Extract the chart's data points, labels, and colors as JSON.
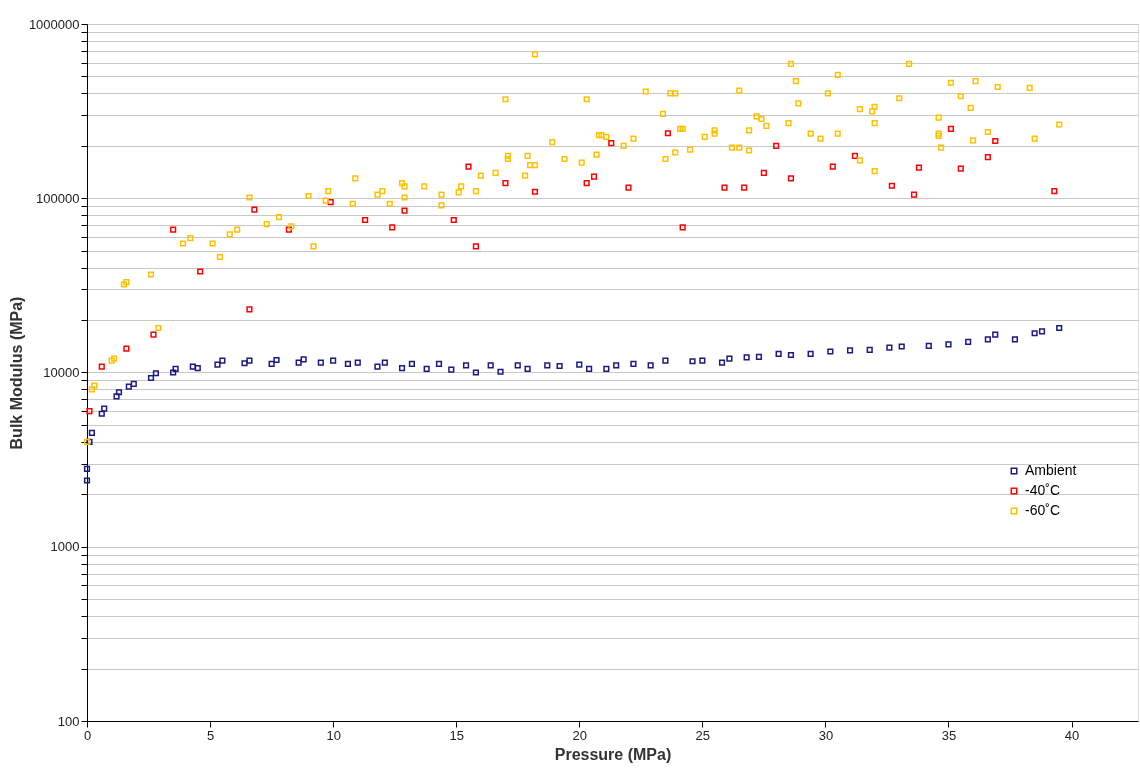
{
  "chart_data": {
    "type": "scatter",
    "xlabel": "Pressure (MPa)",
    "ylabel": "Bulk Modulus (MPa)",
    "xlim": [
      0,
      42.7
    ],
    "xticks": [
      0,
      5,
      10,
      15,
      20,
      25,
      30,
      35,
      40
    ],
    "ylim": [
      100,
      1000000
    ],
    "yticks": [
      100,
      {
        "value": 200,
        "label": null
      },
      {
        "value": 300,
        "label": null
      },
      {
        "value": 400,
        "label": null
      },
      {
        "value": 500,
        "label": null
      },
      {
        "value": 600,
        "label": null
      },
      {
        "value": 700,
        "label": null
      },
      {
        "value": 800,
        "label": null
      },
      {
        "value": 900,
        "label": null
      },
      1000,
      {
        "value": 2000,
        "label": null
      },
      {
        "value": 3000,
        "label": null
      },
      {
        "value": 4000,
        "label": null
      },
      {
        "value": 5000,
        "label": null
      },
      {
        "value": 6000,
        "label": null
      },
      {
        "value": 7000,
        "label": null
      },
      {
        "value": 8000,
        "label": null
      },
      {
        "value": 9000,
        "label": null
      },
      10000,
      {
        "value": 20000,
        "label": null
      },
      {
        "value": 30000,
        "label": null
      },
      {
        "value": 40000,
        "label": null
      },
      {
        "value": 50000,
        "label": null
      },
      {
        "value": 60000,
        "label": null
      },
      {
        "value": 70000,
        "label": null
      },
      {
        "value": 80000,
        "label": null
      },
      {
        "value": 90000,
        "label": null
      },
      100000,
      {
        "value": 200000,
        "label": null
      },
      {
        "value": 300000,
        "label": null
      },
      {
        "value": 400000,
        "label": null
      },
      {
        "value": 500000,
        "label": null
      },
      {
        "value": 600000,
        "label": null
      },
      {
        "value": 700000,
        "label": null
      },
      {
        "value": 800000,
        "label": null
      },
      {
        "value": 900000,
        "label": null
      },
      1000000
    ],
    "log": "y",
    "grid": "y",
    "legend": "right",
    "marker": "square",
    "series": [
      {
        "name": "Ambient",
        "color": "#1a1a80",
        "x": [
          0,
          0,
          0.1,
          0.2,
          0.6,
          0.7,
          1.2,
          1.3,
          1.7,
          1.9,
          2.6,
          2.8,
          3.5,
          3.6,
          4.3,
          4.5,
          5.3,
          5.5,
          6.4,
          6.6,
          7.5,
          7.7,
          8.6,
          8.8,
          9.5,
          10,
          10.6,
          11,
          11.8,
          12.1,
          12.8,
          13.2,
          13.8,
          14.3,
          14.8,
          15.4,
          15.8,
          16.4,
          16.8,
          17.5,
          17.9,
          18.7,
          19.2,
          20,
          20.4,
          21.1,
          21.5,
          22.2,
          22.9,
          23.5,
          24.6,
          25,
          25.8,
          26.1,
          26.8,
          27.3,
          28.1,
          28.6,
          29.4,
          30.2,
          31,
          31.8,
          32.6,
          33.1,
          34.2,
          35,
          35.8,
          36.6,
          36.9,
          37.7,
          38.5,
          38.8,
          39.5
        ],
        "values": [
          2400,
          2800,
          4000,
          4500,
          5800,
          6200,
          7300,
          7700,
          8300,
          8600,
          9300,
          9900,
          10000,
          10500,
          10800,
          10600,
          11100,
          11700,
          11300,
          11700,
          11200,
          11800,
          11400,
          11900,
          11400,
          11700,
          11200,
          11400,
          10800,
          11400,
          10600,
          11200,
          10500,
          11200,
          10400,
          11000,
          10000,
          11000,
          10100,
          11000,
          10500,
          11000,
          10900,
          11100,
          10500,
          10500,
          11000,
          11200,
          11000,
          11700,
          11600,
          11700,
          11400,
          12000,
          12200,
          12300,
          12800,
          12600,
          12800,
          13200,
          13400,
          13500,
          13900,
          14100,
          14200,
          14500,
          15000,
          15500,
          16500,
          15500,
          16800,
          17200,
          18000
        ]
      },
      {
        "name": "-40˚C",
        "color": "#ff0000",
        "x": [
          0.1,
          0.6,
          1.6,
          2.7,
          3.5,
          4.6,
          6.6,
          6.8,
          8.2,
          9.9,
          11.3,
          12.4,
          12.9,
          14.9,
          15.5,
          15.8,
          17,
          18.2,
          20.3,
          20.6,
          21.3,
          22,
          23.6,
          24.2,
          25.9,
          26.7,
          27.5,
          28,
          28.6,
          30.3,
          31.2,
          32.7,
          33.6,
          33.8,
          35.1,
          35.5,
          36.6,
          36.9,
          39.3
        ],
        "values": [
          6000,
          10800,
          13700,
          16500,
          66000,
          38000,
          23000,
          86000,
          66000,
          95000,
          75000,
          68000,
          85000,
          75000,
          152000,
          53000,
          122000,
          109000,
          122000,
          133000,
          207000,
          115000,
          236000,
          68000,
          115000,
          115000,
          140000,
          200000,
          130000,
          152000,
          175000,
          118000,
          105000,
          150000,
          250000,
          148000,
          172000,
          213000,
          110000
        ]
      },
      {
        "name": "-60˚C",
        "color": "#ffc000",
        "x": [
          0,
          0.2,
          0.3,
          1,
          1.1,
          1.5,
          1.6,
          2.6,
          2.9,
          3.9,
          4.2,
          5.1,
          5.4,
          5.8,
          6.1,
          6.6,
          7.3,
          7.8,
          8.3,
          9,
          9.2,
          9.7,
          9.8,
          10.8,
          10.9,
          11.8,
          12,
          12.3,
          12.8,
          12.9,
          12.9,
          13.7,
          14.4,
          14.4,
          15.1,
          15.2,
          15.8,
          16,
          16.6,
          17,
          17.1,
          17.1,
          17.8,
          17.9,
          18,
          18.2,
          18.2,
          18.9,
          19.4,
          20.1,
          20.3,
          20.7,
          20.8,
          20.9,
          21.1,
          21.8,
          22.2,
          22.7,
          23.4,
          23.5,
          23.7,
          23.9,
          23.9,
          24.1,
          24.2,
          24.5,
          25.1,
          25.5,
          25.5,
          26.2,
          26.5,
          26.5,
          26.9,
          26.9,
          27.2,
          27.4,
          27.6,
          28.5,
          28.6,
          28.8,
          28.9,
          29.4,
          29.8,
          30.1,
          30.5,
          30.5,
          31.4,
          31.4,
          31.9,
          32,
          32,
          32,
          33,
          33.4,
          34.6,
          34.6,
          34.6,
          34.7,
          35.1,
          35.5,
          35.9,
          36,
          36.1,
          36.6,
          37,
          38.3,
          38.5,
          39.5
        ],
        "values": [
          4000,
          8000,
          8400,
          11700,
          12000,
          32000,
          33000,
          36500,
          18000,
          55000,
          59000,
          55000,
          46000,
          62000,
          66000,
          101000,
          71000,
          78000,
          69000,
          103000,
          53000,
          97000,
          110000,
          93000,
          130000,
          105000,
          110000,
          93000,
          122000,
          117000,
          101000,
          117000,
          105000,
          91000,
          108000,
          117000,
          110000,
          135000,
          140000,
          370000,
          175000,
          168000,
          135000,
          175000,
          155000,
          155000,
          670000,
          210000,
          168000,
          160000,
          370000,
          178000,
          230000,
          230000,
          225000,
          200000,
          220000,
          410000,
          305000,
          168000,
          400000,
          400000,
          183000,
          250000,
          250000,
          190000,
          225000,
          245000,
          235000,
          195000,
          195000,
          415000,
          188000,
          245000,
          295000,
          285000,
          260000,
          270000,
          590000,
          470000,
          350000,
          235000,
          220000,
          400000,
          510000,
          235000,
          325000,
          165000,
          315000,
          335000,
          143000,
          270000,
          375000,
          590000,
          235000,
          228000,
          290000,
          195000,
          460000,
          385000,
          330000,
          215000,
          470000,
          240000,
          435000,
          430000,
          220000,
          265000
        ]
      }
    ]
  }
}
